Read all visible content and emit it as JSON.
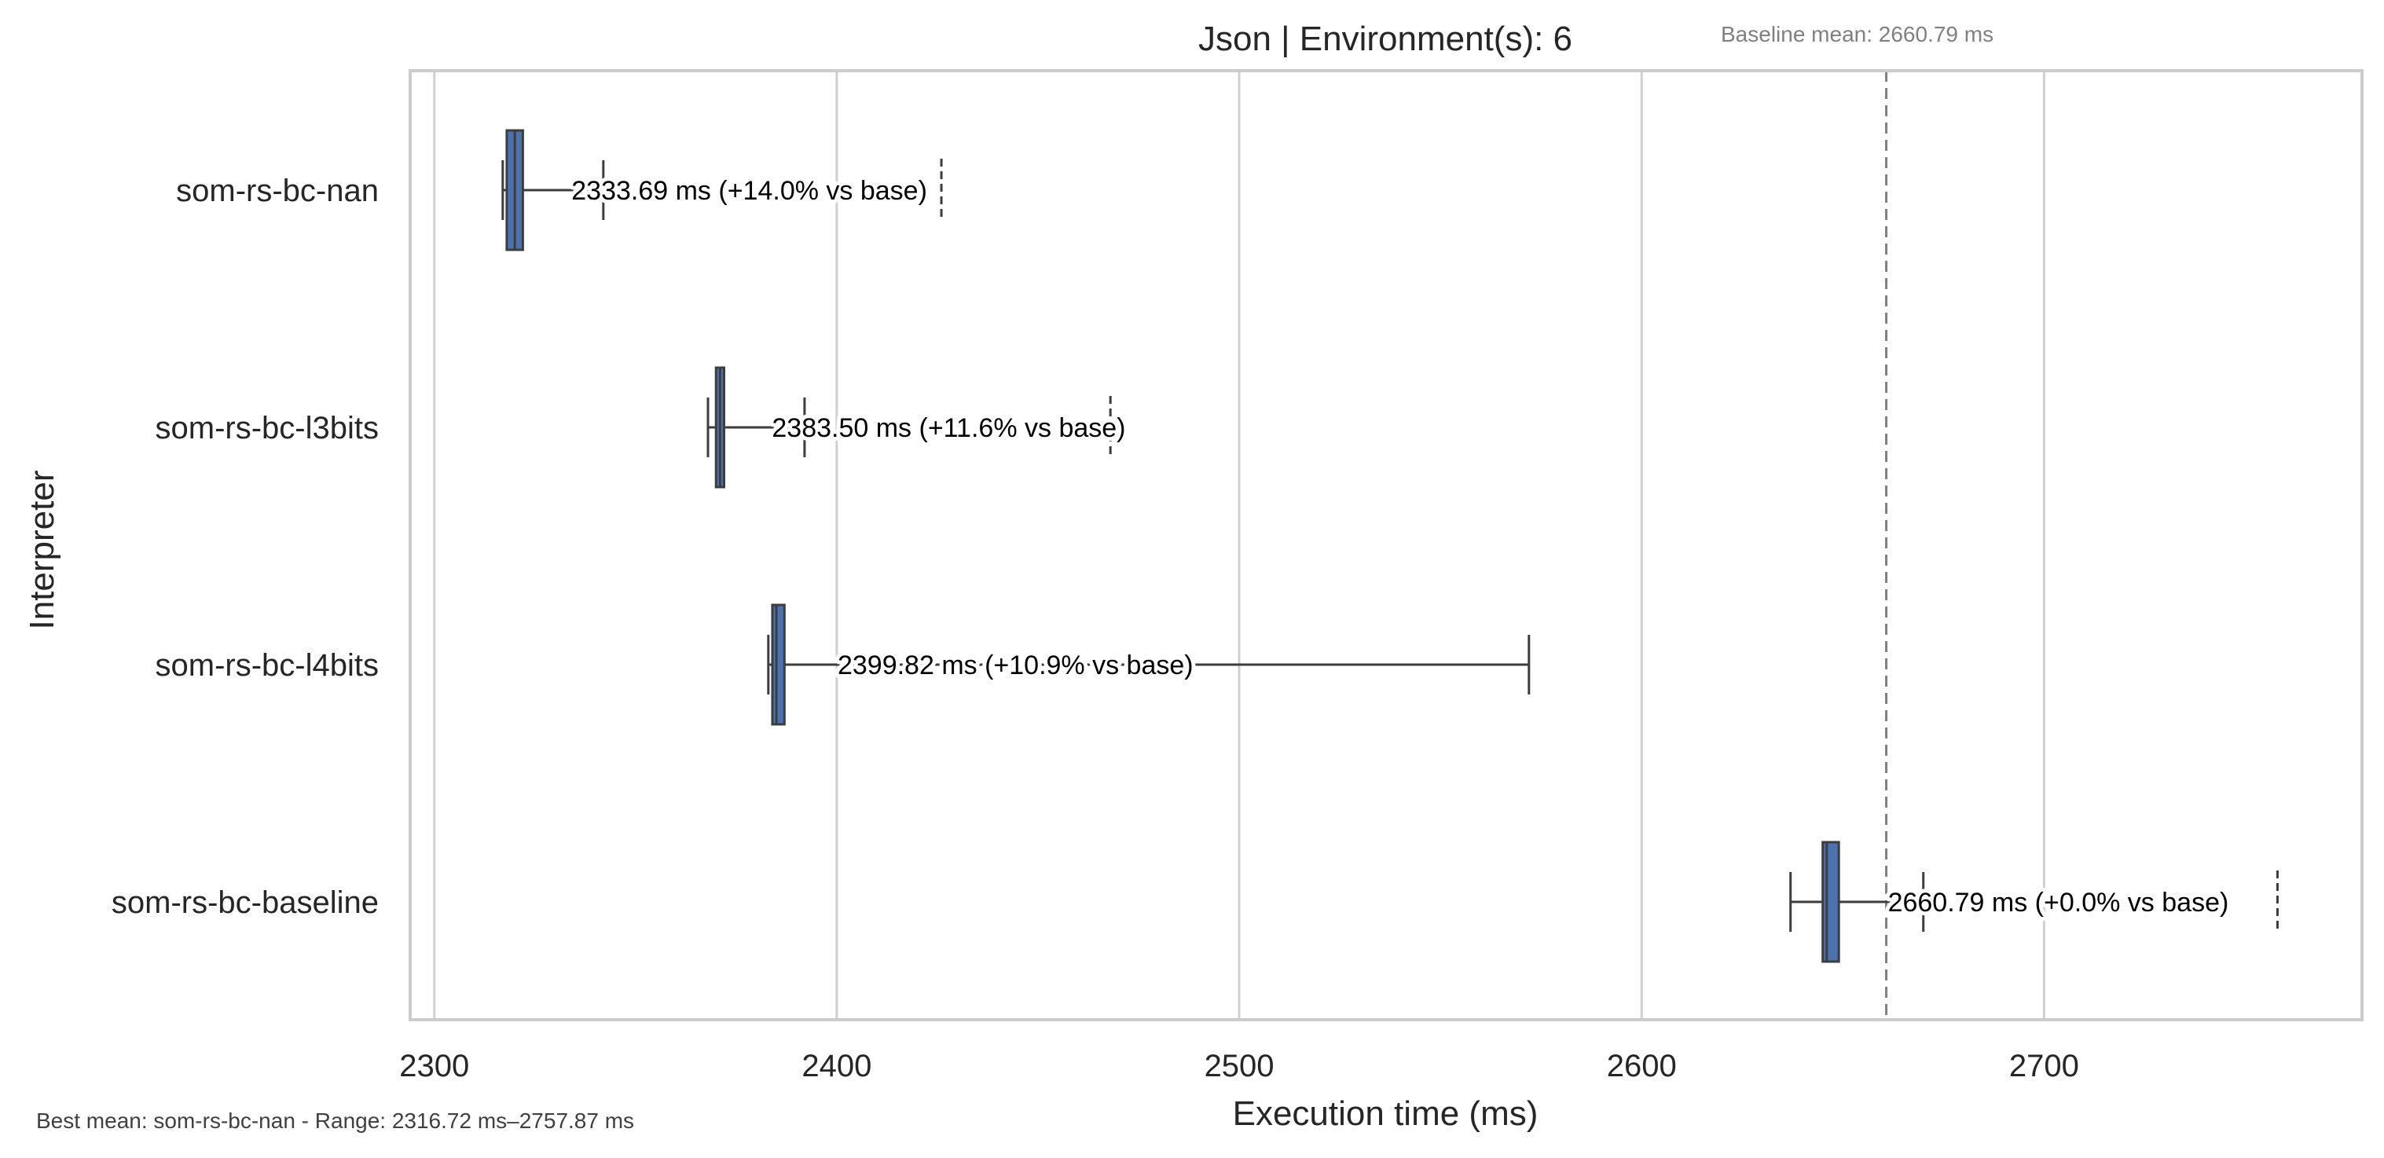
{
  "chart_data": {
    "type": "box",
    "orientation": "horizontal",
    "title": "Json | Environment(s): 6",
    "xlabel": "Execution time (ms)",
    "ylabel": "Interpreter",
    "xlim": [
      2294,
      2779
    ],
    "xticks": [
      2300,
      2400,
      2500,
      2600,
      2700
    ],
    "grid": "vertical",
    "baseline": {
      "value": 2660.79,
      "label": "Baseline mean: 2660.79 ms",
      "style": "dashed"
    },
    "footnote": "Best mean: som-rs-bc-nan - Range: 2316.72 ms–2757.87 ms",
    "colors": {
      "box": "#4c72b0",
      "line": "#3d3d3d",
      "grid": "#d0d0d0",
      "spine": "#cccccc",
      "baseline": "#808080"
    },
    "categories": [
      "som-rs-bc-nan",
      "som-rs-bc-l3bits",
      "som-rs-bc-l4bits",
      "som-rs-bc-baseline"
    ],
    "series": [
      {
        "category": "som-rs-bc-nan",
        "whisker_low": 2317,
        "q1": 2318,
        "median": 2320,
        "q3": 2322,
        "whisker_high": 2342,
        "outliers": [
          2426
        ],
        "mean": 2333.69,
        "label": "2333.69 ms  (+14.0% vs base)"
      },
      {
        "category": "som-rs-bc-l3bits",
        "whisker_low": 2368,
        "q1": 2370,
        "median": 2371,
        "q3": 2372,
        "whisker_high": 2392,
        "outliers": [
          2468
        ],
        "mean": 2383.5,
        "label": "2383.50 ms  (+11.6% vs base)"
      },
      {
        "category": "som-rs-bc-l4bits",
        "whisker_low": 2383,
        "q1": 2384,
        "median": 2385,
        "q3": 2387,
        "whisker_high": 2572,
        "outliers": [],
        "mean": 2399.82,
        "label": "2399.82 ms  (+10.9% vs base)"
      },
      {
        "category": "som-rs-bc-baseline",
        "whisker_low": 2637,
        "q1": 2645,
        "median": 2646,
        "q3": 2649,
        "whisker_high": 2670,
        "outliers": [
          2758
        ],
        "mean": 2660.79,
        "label": "2660.79 ms  (+0.0% vs base)"
      }
    ]
  }
}
